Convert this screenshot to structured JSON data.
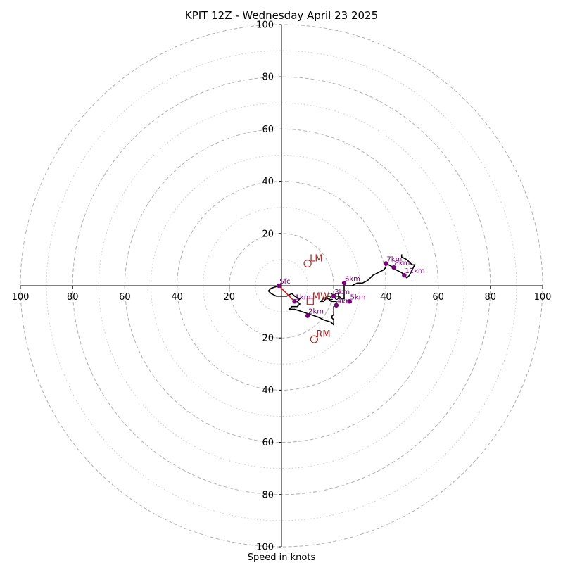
{
  "chart_data": {
    "type": "scatter",
    "title": "KPIT 12Z - Wednesday April 23 2025",
    "xlabel": "Speed in knots",
    "ylabel": "",
    "xlim": [
      -100,
      100
    ],
    "ylim": [
      -100,
      100
    ],
    "grid": true,
    "rings_major": [
      20,
      40,
      60,
      80,
      100
    ],
    "rings_minor": [
      10,
      30,
      50,
      70,
      90
    ],
    "ticks": {
      "x": [
        {
          "v": -100,
          "label": "100"
        },
        {
          "v": -80,
          "label": "80"
        },
        {
          "v": -60,
          "label": "60"
        },
        {
          "v": -40,
          "label": "40"
        },
        {
          "v": -20,
          "label": "20"
        },
        {
          "v": 20,
          "label": "20"
        },
        {
          "v": 40,
          "label": "40"
        },
        {
          "v": 60,
          "label": "60"
        },
        {
          "v": 80,
          "label": "80"
        },
        {
          "v": 100,
          "label": "100"
        }
      ],
      "y": [
        {
          "v": 100,
          "label": "100"
        },
        {
          "v": 80,
          "label": "80"
        },
        {
          "v": 60,
          "label": "60"
        },
        {
          "v": 40,
          "label": "40"
        },
        {
          "v": 20,
          "label": "20"
        },
        {
          "v": -20,
          "label": "20"
        },
        {
          "v": -40,
          "label": "40"
        },
        {
          "v": -60,
          "label": "60"
        },
        {
          "v": -80,
          "label": "80"
        },
        {
          "v": -100,
          "label": "100"
        }
      ]
    },
    "hodograph_trace": [
      [
        -1,
        0
      ],
      [
        -4,
        -1
      ],
      [
        -5,
        -2
      ],
      [
        -4,
        -3
      ],
      [
        -2,
        -4
      ],
      [
        0,
        -4
      ],
      [
        2,
        -4
      ],
      [
        4,
        -3
      ],
      [
        5,
        -4
      ],
      [
        7,
        -5
      ],
      [
        6,
        -6
      ],
      [
        7,
        -7
      ],
      [
        6,
        -8
      ],
      [
        4,
        -8
      ],
      [
        3,
        -9
      ],
      [
        5,
        -9
      ],
      [
        8,
        -10
      ],
      [
        11,
        -11
      ],
      [
        14,
        -12
      ],
      [
        16,
        -13
      ],
      [
        19,
        -14
      ],
      [
        20,
        -15
      ],
      [
        20,
        -14
      ],
      [
        20,
        -13
      ],
      [
        19,
        -12
      ],
      [
        20,
        -11
      ],
      [
        20,
        -10
      ],
      [
        20,
        -8
      ],
      [
        21,
        -7
      ],
      [
        21,
        -6
      ],
      [
        19,
        -6
      ],
      [
        18,
        -5
      ],
      [
        17,
        -5
      ],
      [
        16,
        -6
      ],
      [
        15,
        -6
      ],
      [
        16,
        -5
      ],
      [
        18,
        -4
      ],
      [
        20,
        -4
      ],
      [
        22,
        -4
      ],
      [
        23,
        -5
      ],
      [
        24,
        -5
      ],
      [
        24,
        -3
      ],
      [
        24,
        -1
      ],
      [
        24,
        0
      ],
      [
        25,
        0
      ],
      [
        27,
        0
      ],
      [
        29,
        1
      ],
      [
        31,
        1
      ],
      [
        33,
        2
      ],
      [
        34,
        3
      ],
      [
        35,
        4
      ],
      [
        37,
        5
      ],
      [
        39,
        6
      ],
      [
        40,
        7
      ],
      [
        40,
        8
      ],
      [
        41,
        8
      ],
      [
        43,
        7
      ],
      [
        44,
        6
      ],
      [
        46,
        5
      ],
      [
        47,
        4
      ],
      [
        48,
        3
      ],
      [
        49,
        4
      ],
      [
        50,
        6
      ],
      [
        51,
        8
      ],
      [
        50,
        8
      ],
      [
        49,
        9
      ],
      [
        48,
        10
      ],
      [
        46,
        11
      ],
      [
        46,
        12
      ]
    ],
    "height_markers": [
      {
        "label": "Sfc",
        "x": -1,
        "y": 0
      },
      {
        "label": "1km",
        "x": 5,
        "y": -6
      },
      {
        "label": "2km",
        "x": 10,
        "y": -11.5
      },
      {
        "label": "3km",
        "x": 20,
        "y": -4
      },
      {
        "label": "4km",
        "x": 21,
        "y": -7.5
      },
      {
        "label": "5km",
        "x": 26,
        "y": -6
      },
      {
        "label": "6km",
        "x": 24,
        "y": 1
      },
      {
        "label": "7km",
        "x": 40,
        "y": 8.5
      },
      {
        "label": "8km",
        "x": 43,
        "y": 7
      },
      {
        "label": "12km",
        "x": 47,
        "y": 4
      }
    ],
    "storm_motion": [
      {
        "label": "LM",
        "x": 10,
        "y": 8.5,
        "symbol": "circle"
      },
      {
        "label": "RM",
        "x": 12.5,
        "y": -20.5,
        "symbol": "circle"
      },
      {
        "label": "MW",
        "x": 11,
        "y": -6,
        "symbol": "square"
      }
    ],
    "shear_vector": {
      "from": [
        -1,
        0
      ],
      "to": [
        5,
        -6
      ]
    },
    "colors": {
      "trace": "#000000",
      "markers": "#800080",
      "storm": "#b22222",
      "shear": "#ff0000",
      "grid": "#b0b0b0"
    }
  }
}
